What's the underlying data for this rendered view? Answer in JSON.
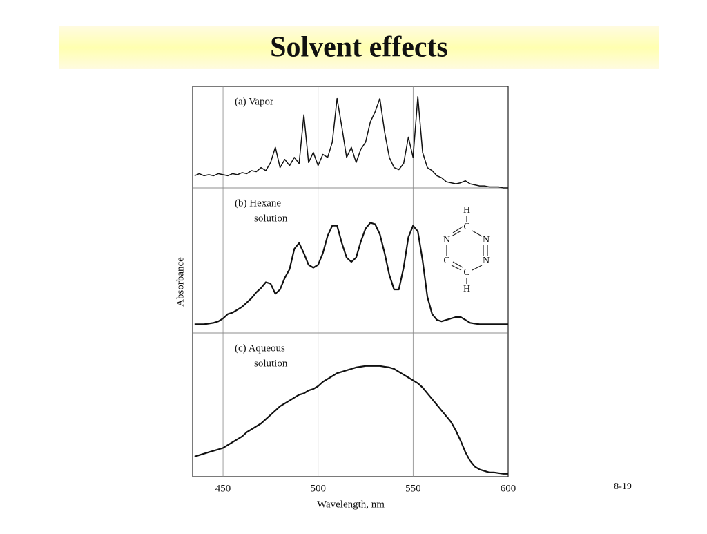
{
  "slide": {
    "title": "Solvent effects",
    "page_number": "8-19"
  },
  "structure": {
    "atoms": [
      "H",
      "C",
      "N",
      "N",
      "C",
      "N",
      "C",
      "H"
    ]
  },
  "chart_data": [
    {
      "type": "line",
      "label_lines": [
        "(a) Vapor"
      ],
      "color": "#111111",
      "xlim": [
        434,
        600
      ],
      "ylim": [
        0,
        1
      ],
      "x": [
        435,
        437.5,
        440,
        442.5,
        445,
        447.5,
        450,
        452.5,
        455,
        457.5,
        460,
        462.5,
        465,
        467.5,
        470,
        472.5,
        475,
        477.5,
        480,
        482.5,
        485,
        487.5,
        490,
        492.5,
        495,
        497.5,
        500,
        502.5,
        505,
        507.5,
        510,
        512.5,
        515,
        517.5,
        520,
        522.5,
        525,
        527.5,
        530,
        532.5,
        535,
        537.5,
        540,
        542.5,
        545,
        547.5,
        550,
        552.5,
        555,
        557.5,
        560,
        562.5,
        565,
        567.5,
        570,
        572.5,
        575,
        577.5,
        580,
        582.5,
        585,
        587.5,
        590,
        592.5,
        595,
        597.5,
        600
      ],
      "values": [
        0.12,
        0.14,
        0.12,
        0.13,
        0.12,
        0.14,
        0.13,
        0.12,
        0.14,
        0.13,
        0.15,
        0.14,
        0.17,
        0.16,
        0.2,
        0.17,
        0.25,
        0.4,
        0.2,
        0.28,
        0.22,
        0.3,
        0.24,
        0.72,
        0.25,
        0.35,
        0.22,
        0.33,
        0.3,
        0.45,
        0.88,
        0.6,
        0.3,
        0.4,
        0.25,
        0.38,
        0.45,
        0.65,
        0.75,
        0.88,
        0.55,
        0.3,
        0.2,
        0.18,
        0.24,
        0.5,
        0.3,
        0.9,
        0.35,
        0.2,
        0.17,
        0.12,
        0.1,
        0.06,
        0.05,
        0.04,
        0.05,
        0.07,
        0.04,
        0.03,
        0.02,
        0.02,
        0.01,
        0.01,
        0.01,
        0,
        0
      ]
    },
    {
      "type": "line",
      "label_lines": [
        "(b) Hexane",
        "solution"
      ],
      "ylabel": "Absorbance",
      "color": "#111111",
      "xlim": [
        434,
        600
      ],
      "ylim": [
        0,
        1
      ],
      "x": [
        435,
        437.5,
        440,
        442.5,
        445,
        447.5,
        450,
        452.5,
        455,
        457.5,
        460,
        462.5,
        465,
        467.5,
        470,
        472.5,
        475,
        477.5,
        480,
        482.5,
        485,
        487.5,
        490,
        492.5,
        495,
        497.5,
        500,
        502.5,
        505,
        507.5,
        510,
        512.5,
        515,
        517.5,
        520,
        522.5,
        525,
        527.5,
        530,
        532.5,
        535,
        537.5,
        540,
        542.5,
        545,
        547.5,
        550,
        552.5,
        555,
        557.5,
        560,
        562.5,
        565,
        567.5,
        570,
        572.5,
        575,
        577.5,
        580,
        582.5,
        585,
        587.5,
        590,
        592.5,
        595,
        597.5,
        600
      ],
      "values": [
        0.06,
        0.06,
        0.06,
        0.065,
        0.07,
        0.08,
        0.1,
        0.13,
        0.14,
        0.16,
        0.18,
        0.21,
        0.24,
        0.28,
        0.31,
        0.35,
        0.34,
        0.27,
        0.3,
        0.38,
        0.44,
        0.58,
        0.62,
        0.55,
        0.47,
        0.45,
        0.47,
        0.55,
        0.67,
        0.74,
        0.74,
        0.62,
        0.52,
        0.49,
        0.52,
        0.63,
        0.72,
        0.76,
        0.75,
        0.68,
        0.55,
        0.4,
        0.3,
        0.3,
        0.45,
        0.66,
        0.74,
        0.7,
        0.5,
        0.25,
        0.13,
        0.09,
        0.08,
        0.09,
        0.1,
        0.11,
        0.11,
        0.09,
        0.07,
        0.065,
        0.06,
        0.06,
        0.06,
        0.06,
        0.06,
        0.06,
        0.06
      ]
    },
    {
      "type": "line",
      "label_lines": [
        "(c) Aqueous",
        "solution"
      ],
      "xlabel": "Wavelength, nm",
      "color": "#111111",
      "xlim": [
        434,
        600
      ],
      "ylim": [
        0,
        1
      ],
      "xticks": [
        450,
        500,
        550,
        600
      ],
      "x": [
        435,
        437.5,
        440,
        442.5,
        445,
        447.5,
        450,
        452.5,
        455,
        457.5,
        460,
        462.5,
        465,
        467.5,
        470,
        472.5,
        475,
        477.5,
        480,
        482.5,
        485,
        487.5,
        490,
        492.5,
        495,
        497.5,
        500,
        502.5,
        505,
        507.5,
        510,
        512.5,
        515,
        517.5,
        520,
        522.5,
        525,
        527.5,
        530,
        532.5,
        535,
        537.5,
        540,
        542.5,
        545,
        547.5,
        550,
        552.5,
        555,
        557.5,
        560,
        562.5,
        565,
        567.5,
        570,
        572.5,
        575,
        577.5,
        580,
        582.5,
        585,
        587.5,
        590,
        592.5,
        595,
        597.5,
        600
      ],
      "values": [
        0.14,
        0.15,
        0.16,
        0.17,
        0.18,
        0.19,
        0.2,
        0.22,
        0.24,
        0.26,
        0.28,
        0.31,
        0.33,
        0.35,
        0.37,
        0.4,
        0.43,
        0.46,
        0.49,
        0.51,
        0.53,
        0.55,
        0.57,
        0.58,
        0.6,
        0.61,
        0.63,
        0.66,
        0.68,
        0.7,
        0.72,
        0.73,
        0.74,
        0.75,
        0.76,
        0.765,
        0.77,
        0.77,
        0.77,
        0.77,
        0.765,
        0.76,
        0.75,
        0.73,
        0.71,
        0.69,
        0.67,
        0.65,
        0.62,
        0.58,
        0.54,
        0.5,
        0.46,
        0.42,
        0.38,
        0.32,
        0.25,
        0.17,
        0.11,
        0.07,
        0.05,
        0.04,
        0.03,
        0.03,
        0.025,
        0.02,
        0.02
      ]
    }
  ]
}
